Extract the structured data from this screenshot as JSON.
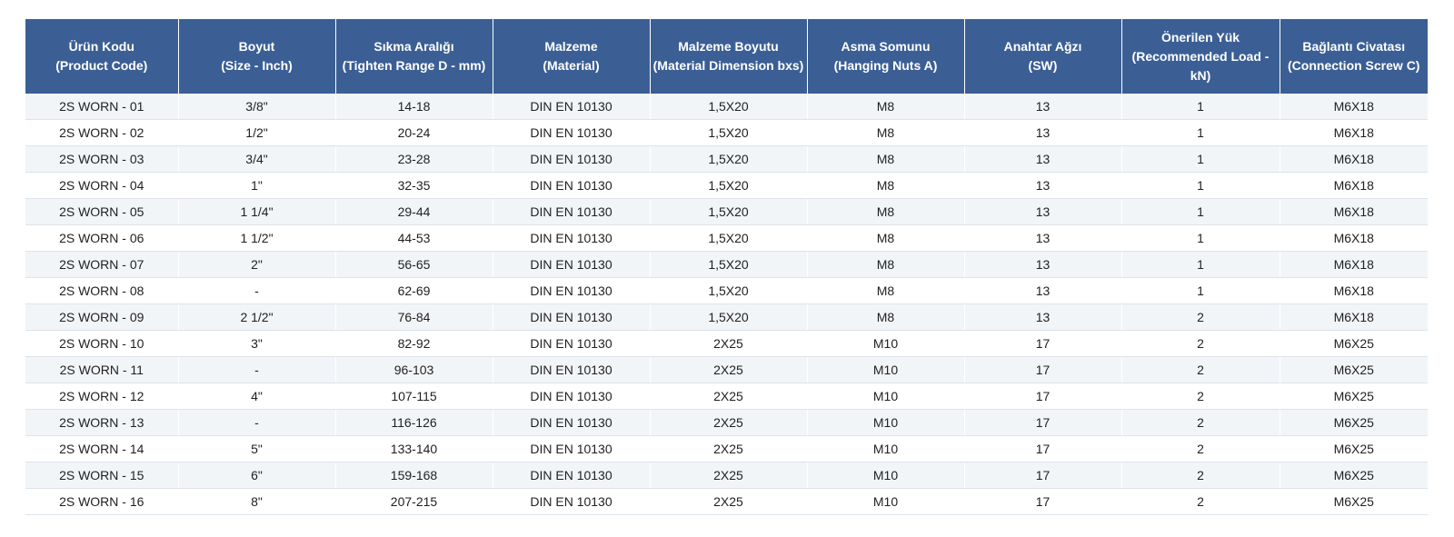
{
  "table": {
    "headers": [
      {
        "line1": "Ürün Kodu",
        "line2": "(Product Code)"
      },
      {
        "line1": "Boyut",
        "line2": "(Size - Inch)"
      },
      {
        "line1": "Sıkma Aralığı",
        "line2": "(Tighten Range D - mm)"
      },
      {
        "line1": "Malzeme",
        "line2": "(Material)"
      },
      {
        "line1": "Malzeme Boyutu",
        "line2": "(Material Dimension bxs)"
      },
      {
        "line1": "Asma Somunu",
        "line2": "(Hanging Nuts A)"
      },
      {
        "line1": "Anahtar Ağzı",
        "line2": "(SW)"
      },
      {
        "line1": "Önerilen Yük",
        "line2": "(Recommended Load - kN)"
      },
      {
        "line1": "Bağlantı Civatası",
        "line2": "(Connection Screw C)"
      }
    ],
    "rows": [
      [
        "2S WORN - 01",
        "3/8\"",
        "14-18",
        "DIN EN 10130",
        "1,5X20",
        "M8",
        "13",
        "1",
        "M6X18"
      ],
      [
        "2S WORN - 02",
        "1/2\"",
        "20-24",
        "DIN EN 10130",
        "1,5X20",
        "M8",
        "13",
        "1",
        "M6X18"
      ],
      [
        "2S WORN - 03",
        "3/4\"",
        "23-28",
        "DIN EN 10130",
        "1,5X20",
        "M8",
        "13",
        "1",
        "M6X18"
      ],
      [
        "2S WORN - 04",
        "1\"",
        "32-35",
        "DIN EN 10130",
        "1,5X20",
        "M8",
        "13",
        "1",
        "M6X18"
      ],
      [
        "2S WORN - 05",
        "1 1/4\"",
        "29-44",
        "DIN EN 10130",
        "1,5X20",
        "M8",
        "13",
        "1",
        "M6X18"
      ],
      [
        "2S WORN - 06",
        "1 1/2\"",
        "44-53",
        "DIN EN 10130",
        "1,5X20",
        "M8",
        "13",
        "1",
        "M6X18"
      ],
      [
        "2S WORN - 07",
        "2\"",
        "56-65",
        "DIN EN 10130",
        "1,5X20",
        "M8",
        "13",
        "1",
        "M6X18"
      ],
      [
        "2S WORN - 08",
        "-",
        "62-69",
        "DIN EN 10130",
        "1,5X20",
        "M8",
        "13",
        "1",
        "M6X18"
      ],
      [
        "2S WORN - 09",
        "2 1/2\"",
        "76-84",
        "DIN EN 10130",
        "1,5X20",
        "M8",
        "13",
        "2",
        "M6X18"
      ],
      [
        "2S WORN - 10",
        "3\"",
        "82-92",
        "DIN EN 10130",
        "2X25",
        "M10",
        "17",
        "2",
        "M6X25"
      ],
      [
        "2S WORN - 11",
        "-",
        "96-103",
        "DIN EN 10130",
        "2X25",
        "M10",
        "17",
        "2",
        "M6X25"
      ],
      [
        "2S WORN - 12",
        "4\"",
        "107-115",
        "DIN EN 10130",
        "2X25",
        "M10",
        "17",
        "2",
        "M6X25"
      ],
      [
        "2S WORN - 13",
        "-",
        "116-126",
        "DIN EN 10130",
        "2X25",
        "M10",
        "17",
        "2",
        "M6X25"
      ],
      [
        "2S WORN - 14",
        "5\"",
        "133-140",
        "DIN EN 10130",
        "2X25",
        "M10",
        "17",
        "2",
        "M6X25"
      ],
      [
        "2S WORN - 15",
        "6\"",
        "159-168",
        "DIN EN 10130",
        "2X25",
        "M10",
        "17",
        "2",
        "M6X25"
      ],
      [
        "2S WORN - 16",
        "8\"",
        "207-215",
        "DIN EN 10130",
        "2X25",
        "M10",
        "17",
        "2",
        "M6X25"
      ]
    ]
  },
  "colors": {
    "header_bg": "#3b5f95",
    "header_text": "#ffffff",
    "row_stripe": "#f2f5f8"
  }
}
